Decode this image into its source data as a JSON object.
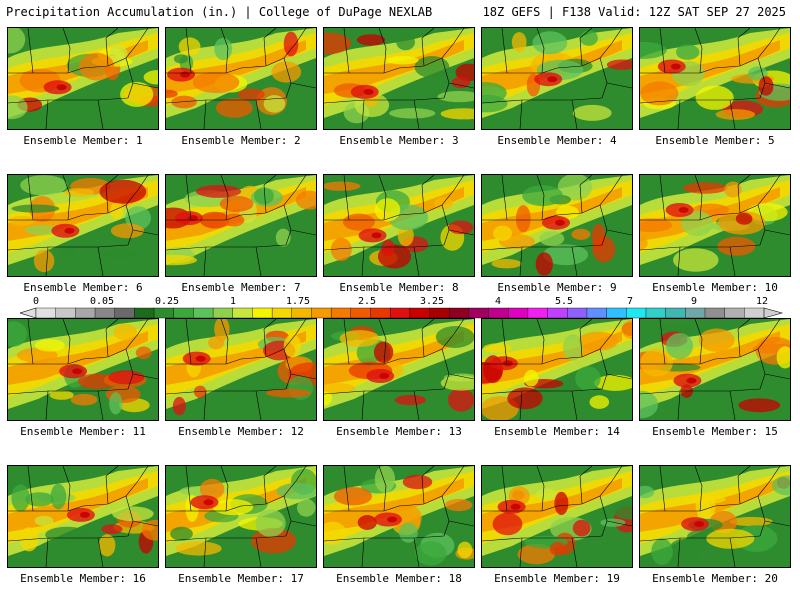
{
  "header": {
    "title": "Precipitation Accumulation (in.) | College of DuPage NEXLAB",
    "run_info": "18Z GEFS | F138 Valid: 12Z SAT SEP 27 2025"
  },
  "panels": [
    {
      "label": "Ensemble Member: 1"
    },
    {
      "label": "Ensemble Member: 2"
    },
    {
      "label": "Ensemble Member: 3"
    },
    {
      "label": "Ensemble Member: 4"
    },
    {
      "label": "Ensemble Member: 5"
    },
    {
      "label": "Ensemble Member: 6"
    },
    {
      "label": "Ensemble Member: 7"
    },
    {
      "label": "Ensemble Member: 8"
    },
    {
      "label": "Ensemble Member: 9"
    },
    {
      "label": "Ensemble Member: 10"
    },
    {
      "label": "Ensemble Member: 11"
    },
    {
      "label": "Ensemble Member: 12"
    },
    {
      "label": "Ensemble Member: 13"
    },
    {
      "label": "Ensemble Member: 14"
    },
    {
      "label": "Ensemble Member: 15"
    },
    {
      "label": "Ensemble Member: 16"
    },
    {
      "label": "Ensemble Member: 17"
    },
    {
      "label": "Ensemble Member: 18"
    },
    {
      "label": "Ensemble Member: 19"
    },
    {
      "label": "Ensemble Member: 20"
    }
  ],
  "colorbar": {
    "tick_labels": [
      "0",
      "0.05",
      "0.25",
      "1",
      "1.75",
      "2.5",
      "3.25",
      "4",
      "5.5",
      "7",
      "9",
      "12"
    ],
    "colors": [
      "#e0e0e0",
      "#c8c8c8",
      "#a8a8a8",
      "#888888",
      "#6a6a6a",
      "#1e6b1e",
      "#2e8b2e",
      "#3ca83c",
      "#5cc25c",
      "#8fd14f",
      "#c8e63c",
      "#f5f500",
      "#f5d800",
      "#f5b800",
      "#f59a00",
      "#f57a00",
      "#f05a00",
      "#e83800",
      "#e01010",
      "#c80000",
      "#a80000",
      "#900020",
      "#a00060",
      "#c0008c",
      "#e000c0",
      "#f020f0",
      "#c040ff",
      "#9060ff",
      "#6090ff",
      "#30c0ff",
      "#20e8f0",
      "#30d0c8",
      "#40b8b0",
      "#70a8a8",
      "#909090",
      "#b0b0b0",
      "#d0d0d0"
    ]
  }
}
